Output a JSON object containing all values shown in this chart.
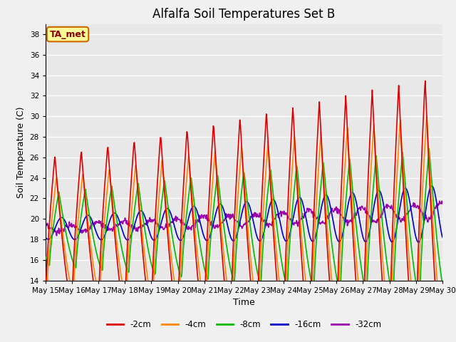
{
  "title": "Alfalfa Soil Temperatures Set B",
  "xlabel": "Time",
  "ylabel": "Soil Temperature (C)",
  "ylim": [
    14,
    39
  ],
  "yticks": [
    14,
    16,
    18,
    20,
    22,
    24,
    26,
    28,
    30,
    32,
    34,
    36,
    38
  ],
  "fig_facecolor": "#f0f0f0",
  "ax_facecolor": "#e8e8e8",
  "grid_color": "#ffffff",
  "annotation_text": "TA_met",
  "annotation_bg": "#ffff99",
  "annotation_border": "#cc6600",
  "annotation_text_color": "#8b0000",
  "series_colors": {
    "-2cm": "#dd0000",
    "-4cm": "#ff8800",
    "-8cm": "#00bb00",
    "-16cm": "#0000cc",
    "-32cm": "#9900aa"
  },
  "legend_labels": [
    "-2cm",
    "-4cm",
    "-8cm",
    "-16cm",
    "-32cm"
  ],
  "x_tick_labels": [
    "May 15",
    "May 16",
    "May 17",
    "May 18",
    "May 19",
    "May 20",
    "May 21",
    "May 22",
    "May 23",
    "May 24",
    "May 25",
    "May 26",
    "May 27",
    "May 28",
    "May 29",
    "May 30"
  ],
  "linewidth": 1.2,
  "title_fontsize": 12,
  "axis_label_fontsize": 9,
  "tick_fontsize": 7.5,
  "legend_fontsize": 8.5
}
